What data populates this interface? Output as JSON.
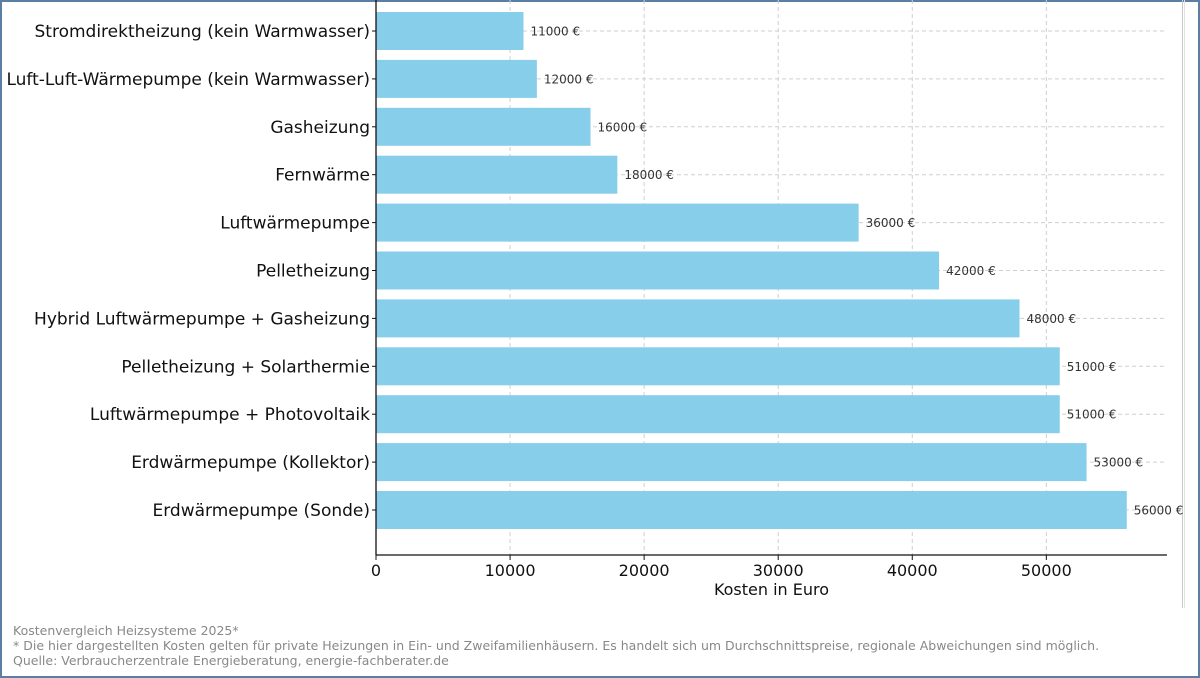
{
  "chart_data": {
    "type": "bar",
    "orientation": "horizontal",
    "categories": [
      "Stromdirektheizung (kein Warmwasser)",
      "Luft-Luft-Wärmepumpe (kein Warmwasser)",
      "Gasheizung",
      "Fernwärme",
      "Luftwärmepumpe",
      "Pelletheizung",
      "Hybrid Luftwärmepumpe + Gasheizung",
      "Pelletheizung + Solarthermie",
      "Luftwärmepumpe + Photovoltaik",
      "Erdwärmepumpe (Kollektor)",
      "Erdwärmepumpe (Sonde)"
    ],
    "values": [
      11000,
      12000,
      16000,
      18000,
      36000,
      42000,
      48000,
      51000,
      51000,
      53000,
      56000
    ],
    "value_labels": [
      "11000 €",
      "12000 €",
      "16000 €",
      "18000 €",
      "36000 €",
      "42000 €",
      "48000 €",
      "51000 €",
      "51000 €",
      "53000 €",
      "56000 €"
    ],
    "xlabel": "Kosten in Euro",
    "xticks": [
      0,
      10000,
      20000,
      30000,
      40000,
      50000
    ],
    "xtick_labels": [
      "0",
      "10000",
      "20000",
      "30000",
      "40000",
      "50000"
    ],
    "xlim": [
      0,
      59000
    ],
    "grid": true,
    "bar_color": "#87ceeb"
  },
  "footer": {
    "line1": "Kostenvergleich Heizsysteme 2025*",
    "line2": "* Die hier dargestellten Kosten gelten für private Heizungen in Ein- und Zweifamilienhäusern. Es handelt sich um Durchschnittspreise, regionale Abweichungen sind möglich.",
    "line3": "Quelle: Verbraucherzentrale Energieberatung, energie-fachberater.de"
  }
}
